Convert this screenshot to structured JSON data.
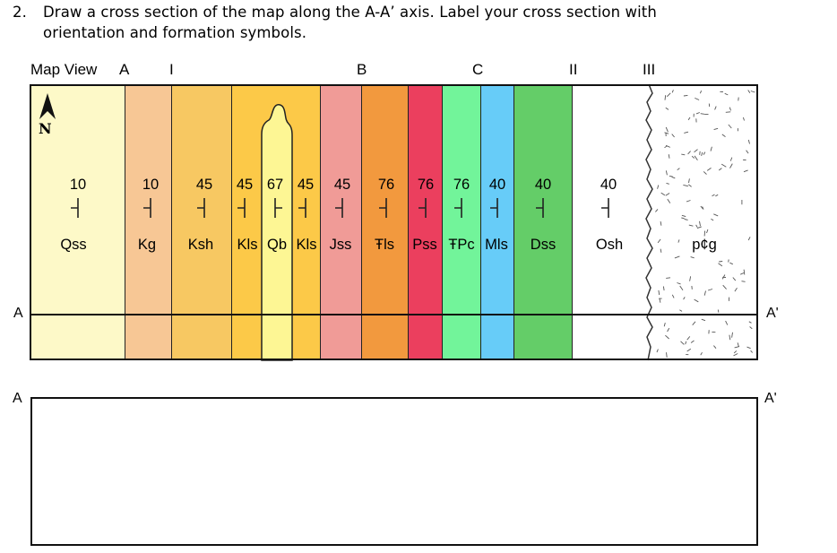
{
  "question": {
    "number": "2.",
    "line1": "Draw a cross section of the map along the A-A’ axis. Label your cross section with",
    "line2": "orientation and formation symbols."
  },
  "header": {
    "map_view": "Map View",
    "markers": [
      "A",
      "I",
      "B",
      "C",
      "II",
      "III"
    ]
  },
  "axis": {
    "left_map": "A",
    "right_map": "A'",
    "left_section": "A",
    "right_section": "A'"
  },
  "north_label": "N",
  "colors": {
    "Qss": "#fdf9c8",
    "Kg": "#f7c795",
    "Ksh": "#f7c862",
    "Kls": "#fcc948",
    "Qb": "#fdf694",
    "Jss": "#f09b97",
    "Rls": "#f2993e",
    "Pss": "#eb3f5e",
    "TPc": "#72f49a",
    "Mls": "#67ccf8",
    "Dss": "#64cd68",
    "Osh": "#ffffff",
    "pCg": "#ffffff"
  },
  "formations": [
    {
      "symbol": "Qss",
      "dip": "10"
    },
    {
      "symbol": "Kg",
      "dip": "10"
    },
    {
      "symbol": "Ksh",
      "dip": "45"
    },
    {
      "symbol": "Kls",
      "dip": "45"
    },
    {
      "symbol": "Qb",
      "dip": "67"
    },
    {
      "symbol": "Kls",
      "dip": "45"
    },
    {
      "symbol": "Jss",
      "dip": "45"
    },
    {
      "symbol": "Ŧls",
      "dip": "76"
    },
    {
      "symbol": "Pss",
      "dip": "76"
    },
    {
      "symbol": "ŦPc",
      "dip": "76"
    },
    {
      "symbol": "Mls",
      "dip": "40"
    },
    {
      "symbol": "Dss",
      "dip": "40"
    },
    {
      "symbol": "Osh",
      "dip": "40"
    },
    {
      "symbol": "p¢g",
      "dip": ""
    }
  ]
}
